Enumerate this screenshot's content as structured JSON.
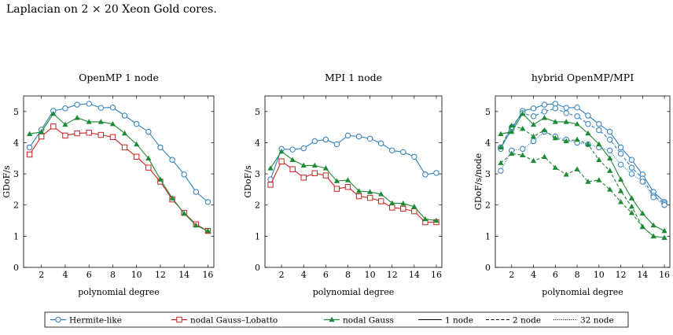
{
  "caption": "Laplacian on 2 × 20 Xeon Gold cores.",
  "colors": {
    "hermite": "#2e7fb8",
    "lobatto": "#cc2222",
    "gauss": "#1e8a35"
  },
  "legend": {
    "hermite": "Hermite-like",
    "lobatto": "nodal Gauss–Lobatto",
    "gauss": "nodal Gauss",
    "n1": "1 node",
    "n2": "2 node",
    "n32": "32 node"
  },
  "chart_data": [
    {
      "type": "line",
      "title": "OpenMP 1 node",
      "xlabel": "polynomial degree",
      "ylabel": "GDoF/s",
      "xlim": [
        0.5,
        16.5
      ],
      "ylim": [
        0,
        5.5
      ],
      "xticks": [
        2,
        4,
        6,
        8,
        10,
        12,
        14,
        16
      ],
      "yticks": [
        0,
        1,
        2,
        3,
        4,
        5
      ],
      "x": [
        1,
        2,
        3,
        4,
        5,
        6,
        7,
        8,
        9,
        10,
        11,
        12,
        13,
        14,
        15,
        16
      ],
      "series": [
        {
          "name": "Hermite-like",
          "marker": "circle",
          "color": "#2e7fb8",
          "dash": "solid",
          "values": [
            3.85,
            4.42,
            5.02,
            5.1,
            5.22,
            5.25,
            5.12,
            5.13,
            4.87,
            4.6,
            4.35,
            3.85,
            3.45,
            2.98,
            2.42,
            2.1
          ]
        },
        {
          "name": "nodal Gauss–Lobatto",
          "marker": "square",
          "color": "#cc2222",
          "dash": "solid",
          "values": [
            3.62,
            4.2,
            4.52,
            4.23,
            4.3,
            4.32,
            4.25,
            4.18,
            3.85,
            3.55,
            3.2,
            2.75,
            2.18,
            1.75,
            1.38,
            1.17
          ]
        },
        {
          "name": "nodal Gauss",
          "marker": "triangle",
          "color": "#1e8a35",
          "dash": "solid",
          "values": [
            4.28,
            4.35,
            4.93,
            4.58,
            4.8,
            4.67,
            4.67,
            4.6,
            4.3,
            3.95,
            3.5,
            2.82,
            2.22,
            1.73,
            1.35,
            1.17
          ]
        }
      ]
    },
    {
      "type": "line",
      "title": "MPI 1 node",
      "xlabel": "polynomial degree",
      "ylabel": "GDoF/s",
      "xlim": [
        0.5,
        16.5
      ],
      "ylim": [
        0,
        5.5
      ],
      "xticks": [
        2,
        4,
        6,
        8,
        10,
        12,
        14,
        16
      ],
      "yticks": [
        0,
        1,
        2,
        3,
        4,
        5
      ],
      "x": [
        1,
        2,
        3,
        4,
        5,
        6,
        7,
        8,
        9,
        10,
        11,
        12,
        13,
        14,
        15,
        16
      ],
      "series": [
        {
          "name": "Hermite-like",
          "marker": "circle",
          "color": "#2e7fb8",
          "dash": "solid",
          "values": [
            2.82,
            3.8,
            3.78,
            3.82,
            4.05,
            4.1,
            3.95,
            4.23,
            4.2,
            4.13,
            3.98,
            3.75,
            3.7,
            3.55,
            2.98,
            3.03
          ]
        },
        {
          "name": "nodal Gauss–Lobatto",
          "marker": "square",
          "color": "#cc2222",
          "dash": "solid",
          "values": [
            2.65,
            3.4,
            3.15,
            2.88,
            3.02,
            2.95,
            2.52,
            2.58,
            2.28,
            2.23,
            2.12,
            1.92,
            1.88,
            1.8,
            1.45,
            1.45
          ]
        },
        {
          "name": "nodal Gauss",
          "marker": "triangle",
          "color": "#1e8a35",
          "dash": "solid",
          "values": [
            3.18,
            3.72,
            3.45,
            3.27,
            3.27,
            3.18,
            2.77,
            2.8,
            2.45,
            2.42,
            2.35,
            2.06,
            2.05,
            1.95,
            1.55,
            1.5
          ]
        }
      ]
    },
    {
      "type": "line",
      "title": "hybrid OpenMP/MPI",
      "xlabel": "polynomial degree",
      "ylabel": "GDoF/s/node",
      "xlim": [
        0.5,
        16.5
      ],
      "ylim": [
        0,
        5.5
      ],
      "xticks": [
        2,
        4,
        6,
        8,
        10,
        12,
        14,
        16
      ],
      "yticks": [
        0,
        1,
        2,
        3,
        4,
        5
      ],
      "x": [
        1,
        2,
        3,
        4,
        5,
        6,
        7,
        8,
        9,
        10,
        11,
        12,
        13,
        14,
        15,
        16
      ],
      "series": [
        {
          "name": "Hermite-like",
          "marker": "circle",
          "color": "#2e7fb8",
          "dash": "solid",
          "values": [
            3.85,
            4.42,
            5.02,
            5.1,
            5.22,
            5.25,
            5.12,
            5.13,
            4.87,
            4.6,
            4.35,
            3.85,
            3.45,
            2.98,
            2.42,
            2.1
          ]
        },
        {
          "name": "Hermite-like",
          "marker": "circle",
          "color": "#2e7fb8",
          "dash": "dashed",
          "values": [
            3.8,
            4.5,
            4.95,
            4.85,
            5.0,
            5.1,
            4.95,
            4.85,
            4.6,
            4.4,
            4.1,
            3.65,
            3.2,
            2.85,
            2.3,
            2.05
          ]
        },
        {
          "name": "Hermite-like",
          "marker": "circle",
          "color": "#2e7fb8",
          "dash": "dotted",
          "values": [
            3.1,
            3.75,
            3.8,
            4.05,
            4.35,
            4.2,
            4.1,
            4.0,
            3.95,
            3.85,
            3.75,
            3.3,
            3.0,
            2.75,
            2.25,
            2.0
          ]
        },
        {
          "name": "nodal Gauss",
          "marker": "triangle",
          "color": "#1e8a35",
          "dash": "solid",
          "values": [
            4.28,
            4.35,
            4.93,
            4.58,
            4.8,
            4.67,
            4.67,
            4.6,
            4.3,
            3.95,
            3.5,
            2.82,
            2.22,
            1.73,
            1.35,
            1.17
          ]
        },
        {
          "name": "nodal Gauss",
          "marker": "triangle",
          "color": "#1e8a35",
          "dash": "dashed",
          "values": [
            3.85,
            4.55,
            4.45,
            4.2,
            4.4,
            4.15,
            4.05,
            4.1,
            3.95,
            3.45,
            3.1,
            2.45,
            1.95,
            1.3,
            1.0,
            0.95
          ]
        },
        {
          "name": "nodal Gauss",
          "marker": "triangle",
          "color": "#1e8a35",
          "dash": "dashed",
          "values": [
            3.35,
            3.65,
            3.6,
            3.42,
            3.55,
            3.2,
            2.98,
            3.15,
            2.75,
            2.8,
            2.5,
            2.1,
            1.75,
            1.3,
            1.0,
            0.95
          ]
        }
      ]
    }
  ]
}
